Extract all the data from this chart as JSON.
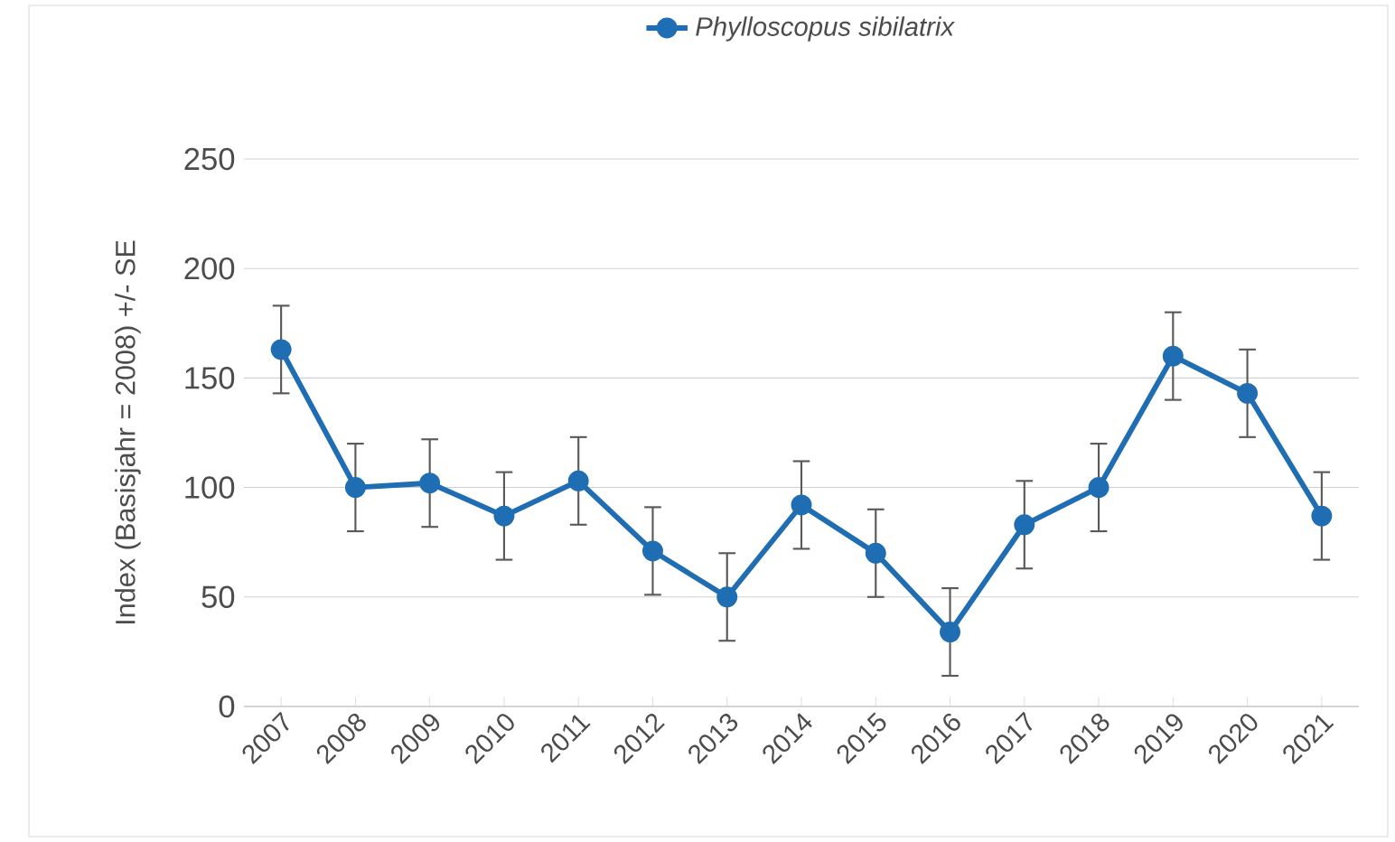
{
  "chart_data": {
    "type": "line",
    "categories": [
      "2007",
      "2008",
      "2009",
      "2010",
      "2011",
      "2012",
      "2013",
      "2014",
      "2015",
      "2016",
      "2017",
      "2018",
      "2019",
      "2020",
      "2021"
    ],
    "series": [
      {
        "name": "*Phylloscopus sibilatrix*",
        "color": "#1f6db3",
        "values": [
          163,
          100,
          102,
          87,
          103,
          71,
          50,
          92,
          70,
          34,
          83,
          100,
          160,
          143,
          87
        ],
        "errors": [
          20,
          20,
          20,
          20,
          20,
          20,
          20,
          20,
          20,
          20,
          20,
          20,
          20,
          20,
          20
        ]
      }
    ],
    "ylabel": "Index (Basisjahr  = 2008) +/- SE",
    "ylim": [
      0,
      250
    ],
    "yticks": [
      0,
      50,
      100,
      150,
      200,
      250
    ],
    "grid": "y",
    "legend": "top",
    "marker": "circle",
    "line_style": "solid"
  }
}
